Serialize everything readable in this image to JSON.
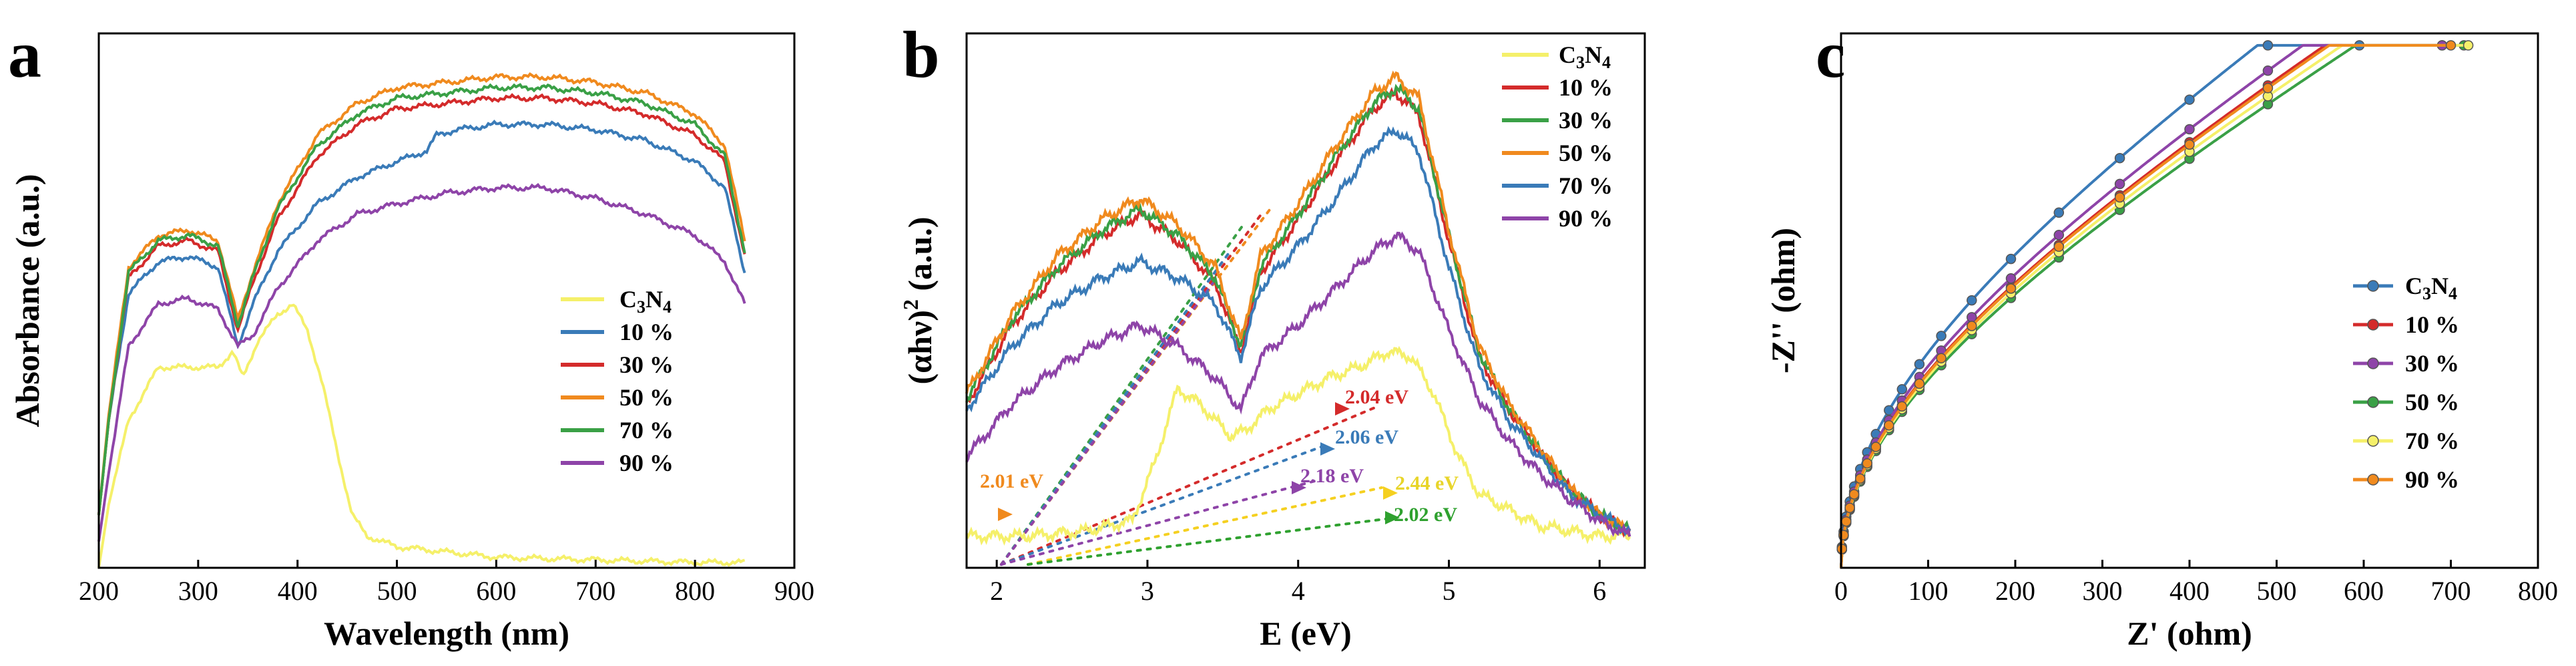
{
  "chart_data": [
    {
      "panel": "a",
      "type": "line",
      "title": "",
      "xlabel": "Wavelength (nm)",
      "ylabel": "Absorbance (a.u.)",
      "xlim": [
        200,
        900
      ],
      "ylim": [
        0,
        1.0
      ],
      "xticks": [
        "200",
        "300",
        "400",
        "500",
        "600",
        "700",
        "800",
        "900"
      ],
      "legend_position": "center-right",
      "series": [
        {
          "name": "C3N4",
          "label_main": "C",
          "label_sub1": "3",
          "label_mid": "N",
          "label_sub2": "4",
          "color": "#f5f06a",
          "x": [
            200,
            210,
            230,
            260,
            290,
            320,
            335,
            345,
            360,
            380,
            395,
            410,
            425,
            440,
            455,
            470,
            500,
            550,
            600,
            700,
            800,
            850
          ],
          "y": [
            0.0,
            0.12,
            0.28,
            0.38,
            0.38,
            0.38,
            0.41,
            0.36,
            0.43,
            0.48,
            0.5,
            0.45,
            0.35,
            0.22,
            0.1,
            0.06,
            0.04,
            0.03,
            0.02,
            0.015,
            0.01,
            0.01
          ]
        },
        {
          "name": "10 %",
          "color": "#3a7bb8",
          "x": [
            200,
            210,
            230,
            260,
            290,
            320,
            340,
            355,
            380,
            420,
            460,
            500,
            530,
            540,
            560,
            600,
            650,
            700,
            750,
            800,
            830,
            850
          ],
          "y": [
            0.1,
            0.28,
            0.52,
            0.58,
            0.59,
            0.57,
            0.42,
            0.5,
            0.6,
            0.69,
            0.74,
            0.77,
            0.79,
            0.82,
            0.83,
            0.84,
            0.84,
            0.83,
            0.81,
            0.77,
            0.72,
            0.56
          ]
        },
        {
          "name": "30 %",
          "color": "#d42b2b",
          "x": [
            200,
            210,
            230,
            260,
            290,
            320,
            340,
            355,
            380,
            420,
            460,
            500,
            550,
            600,
            650,
            700,
            750,
            800,
            830,
            850
          ],
          "y": [
            0.1,
            0.28,
            0.55,
            0.61,
            0.62,
            0.6,
            0.45,
            0.54,
            0.66,
            0.78,
            0.84,
            0.87,
            0.88,
            0.89,
            0.89,
            0.88,
            0.86,
            0.82,
            0.77,
            0.59
          ]
        },
        {
          "name": "50 %",
          "color": "#f08a1e",
          "x": [
            200,
            210,
            230,
            260,
            290,
            320,
            340,
            355,
            380,
            420,
            460,
            500,
            550,
            600,
            650,
            700,
            750,
            800,
            830,
            850
          ],
          "y": [
            0.1,
            0.29,
            0.57,
            0.63,
            0.64,
            0.62,
            0.47,
            0.56,
            0.69,
            0.82,
            0.88,
            0.91,
            0.92,
            0.93,
            0.93,
            0.92,
            0.9,
            0.86,
            0.8,
            0.62
          ]
        },
        {
          "name": "70 %",
          "color": "#3aa046",
          "x": [
            200,
            210,
            230,
            260,
            290,
            320,
            340,
            355,
            380,
            420,
            460,
            500,
            550,
            600,
            650,
            700,
            750,
            800,
            830,
            850
          ],
          "y": [
            0.1,
            0.28,
            0.56,
            0.62,
            0.63,
            0.61,
            0.46,
            0.55,
            0.68,
            0.8,
            0.86,
            0.89,
            0.9,
            0.91,
            0.91,
            0.9,
            0.88,
            0.84,
            0.78,
            0.6
          ]
        },
        {
          "name": "90 %",
          "color": "#8e44a8",
          "x": [
            200,
            210,
            230,
            260,
            290,
            320,
            340,
            355,
            380,
            420,
            460,
            500,
            550,
            600,
            650,
            700,
            750,
            800,
            830,
            850
          ],
          "y": [
            0.05,
            0.18,
            0.42,
            0.5,
            0.51,
            0.49,
            0.42,
            0.44,
            0.53,
            0.62,
            0.67,
            0.69,
            0.71,
            0.72,
            0.72,
            0.7,
            0.67,
            0.63,
            0.58,
            0.5
          ]
        }
      ]
    },
    {
      "panel": "b",
      "type": "line",
      "title": "",
      "xlabel": "E (eV)",
      "ylabel_main": "(αhν)",
      "ylabel_sup": "2",
      "ylabel_tail": " (a.u.)",
      "xlim": [
        1.8,
        6.3
      ],
      "ylim": [
        0,
        1.0
      ],
      "xticks": [
        "2",
        "3",
        "4",
        "5",
        "6"
      ],
      "legend_position": "top-right",
      "series": [
        {
          "name": "C3N4",
          "label_main": "C",
          "label_sub1": "3",
          "label_mid": "N",
          "label_sub2": "4",
          "color": "#f5f06a",
          "x": [
            1.8,
            2.2,
            2.6,
            2.9,
            3.05,
            3.2,
            3.35,
            3.55,
            3.65,
            3.8,
            4.0,
            4.2,
            4.4,
            4.6,
            4.75,
            4.9,
            5.05,
            5.2,
            5.4,
            5.6,
            5.8,
            6.0,
            6.2
          ],
          "y": [
            0.06,
            0.06,
            0.07,
            0.09,
            0.2,
            0.34,
            0.31,
            0.25,
            0.26,
            0.3,
            0.33,
            0.36,
            0.38,
            0.41,
            0.4,
            0.33,
            0.22,
            0.14,
            0.11,
            0.08,
            0.07,
            0.06,
            0.06
          ]
        },
        {
          "name": "10 %",
          "color": "#d42b2b",
          "x": [
            1.8,
            2.1,
            2.4,
            2.7,
            2.95,
            3.2,
            3.45,
            3.62,
            3.75,
            4.0,
            4.25,
            4.5,
            4.65,
            4.8,
            5.0,
            5.2,
            5.4,
            5.6,
            5.8,
            6.0,
            6.2
          ],
          "y": [
            0.31,
            0.46,
            0.56,
            0.63,
            0.67,
            0.62,
            0.54,
            0.41,
            0.56,
            0.66,
            0.77,
            0.87,
            0.9,
            0.86,
            0.62,
            0.4,
            0.3,
            0.22,
            0.15,
            0.1,
            0.07
          ]
        },
        {
          "name": "30 %",
          "color": "#3aa046",
          "x": [
            1.8,
            2.1,
            2.4,
            2.7,
            2.95,
            3.2,
            3.45,
            3.62,
            3.75,
            4.0,
            4.25,
            4.5,
            4.65,
            4.8,
            5.0,
            5.2,
            5.4,
            5.6,
            5.8,
            6.0,
            6.2
          ],
          "y": [
            0.32,
            0.47,
            0.57,
            0.64,
            0.68,
            0.63,
            0.55,
            0.42,
            0.57,
            0.67,
            0.78,
            0.88,
            0.91,
            0.87,
            0.63,
            0.41,
            0.3,
            0.22,
            0.15,
            0.1,
            0.07
          ]
        },
        {
          "name": "50 %",
          "color": "#f08a1e",
          "x": [
            1.8,
            2.1,
            2.4,
            2.7,
            2.95,
            3.2,
            3.45,
            3.62,
            3.75,
            4.0,
            4.25,
            4.5,
            4.65,
            4.8,
            5.0,
            5.2,
            5.4,
            5.6,
            5.8,
            6.0,
            6.2
          ],
          "y": [
            0.33,
            0.48,
            0.59,
            0.66,
            0.7,
            0.65,
            0.57,
            0.43,
            0.59,
            0.69,
            0.8,
            0.9,
            0.93,
            0.89,
            0.64,
            0.42,
            0.31,
            0.23,
            0.15,
            0.1,
            0.07
          ]
        },
        {
          "name": "70 %",
          "color": "#3a7bb8",
          "x": [
            1.8,
            2.1,
            2.4,
            2.7,
            2.95,
            3.2,
            3.45,
            3.62,
            3.75,
            4.0,
            4.25,
            4.5,
            4.65,
            4.8,
            5.0,
            5.2,
            5.4,
            5.6,
            5.8,
            6.0,
            6.2
          ],
          "y": [
            0.3,
            0.42,
            0.5,
            0.55,
            0.58,
            0.55,
            0.5,
            0.4,
            0.53,
            0.61,
            0.7,
            0.8,
            0.83,
            0.79,
            0.57,
            0.38,
            0.28,
            0.21,
            0.14,
            0.1,
            0.07
          ]
        },
        {
          "name": "90 %",
          "color": "#8e44a8",
          "x": [
            1.8,
            2.1,
            2.4,
            2.7,
            2.95,
            3.2,
            3.45,
            3.62,
            3.75,
            4.0,
            4.25,
            4.5,
            4.65,
            4.8,
            5.0,
            5.2,
            5.4,
            5.6,
            5.8,
            6.0,
            6.2
          ],
          "y": [
            0.21,
            0.31,
            0.38,
            0.43,
            0.46,
            0.42,
            0.36,
            0.3,
            0.4,
            0.46,
            0.53,
            0.6,
            0.63,
            0.6,
            0.45,
            0.32,
            0.24,
            0.18,
            0.13,
            0.09,
            0.06
          ]
        }
      ],
      "annotations": [
        {
          "text": "2.01 eV",
          "color": "#f08a1e"
        },
        {
          "text": "2.04 eV",
          "color": "#d42b2b"
        },
        {
          "text": "2.06 eV",
          "color": "#3a7bb8"
        },
        {
          "text": "2.18 eV",
          "color": "#8e44a8"
        },
        {
          "text": "2.44 eV",
          "color": "#e8d52a"
        },
        {
          "text": "2.02 eV",
          "color": "#2fa12f"
        }
      ]
    },
    {
      "panel": "c",
      "type": "line",
      "title": "",
      "xlabel": "Z' (ohm)",
      "ylabel": "-Z'' (ohm)",
      "xlim": [
        0,
        800
      ],
      "ylim": [
        0,
        1.0
      ],
      "xticks": [
        "0",
        "100",
        "200",
        "300",
        "400",
        "500",
        "600",
        "700",
        "800"
      ],
      "legend_position": "center-right",
      "series": [
        {
          "name": "C3N4",
          "label_main": "C",
          "label_sub1": "3",
          "label_mid": "N",
          "label_sub2": "4",
          "color": "#3a7bb8",
          "zmax": 595,
          "k": 0.0396
        },
        {
          "name": "10 %",
          "color": "#d42b2b",
          "zmax": 690,
          "k": 0.036
        },
        {
          "name": "30 %",
          "color": "#8e44a8",
          "zmax": 690,
          "k": 0.0371
        },
        {
          "name": "50 %",
          "color": "#3aa046",
          "zmax": 715,
          "k": 0.0346
        },
        {
          "name": "70 %",
          "color": "#f5f06a",
          "zmax": 720,
          "k": 0.0352
        },
        {
          "name": "90 %",
          "color": "#f08a1e",
          "zmax": 700,
          "k": 0.0358
        }
      ]
    }
  ]
}
